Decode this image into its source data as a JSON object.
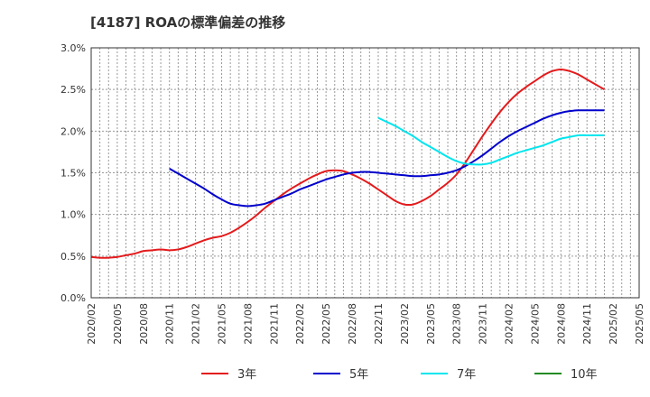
{
  "chart_data": {
    "type": "line",
    "title": "[4187]  ROAの標準偏差の推移",
    "xlabel": "",
    "ylabel": "",
    "ylim": [
      0,
      3.0
    ],
    "y_ticks": [
      "0.0%",
      "0.5%",
      "1.0%",
      "1.5%",
      "2.0%",
      "2.5%",
      "3.0%"
    ],
    "x_ticks": [
      "2020/02",
      "2020/05",
      "2020/08",
      "2020/11",
      "2021/02",
      "2021/05",
      "2021/08",
      "2021/11",
      "2022/02",
      "2022/05",
      "2022/08",
      "2022/11",
      "2023/02",
      "2023/05",
      "2023/08",
      "2023/11",
      "2024/02",
      "2024/05",
      "2024/08",
      "2024/11",
      "2025/02",
      "2025/05"
    ],
    "grid": true,
    "legend_position": "bottom",
    "series": [
      {
        "name": "3年",
        "color": "#e41a1c",
        "points": [
          [
            "2020/02",
            0.49
          ],
          [
            "2020/03",
            0.48
          ],
          [
            "2020/04",
            0.48
          ],
          [
            "2020/05",
            0.49
          ],
          [
            "2020/06",
            0.51
          ],
          [
            "2020/07",
            0.53
          ],
          [
            "2020/08",
            0.56
          ],
          [
            "2020/09",
            0.57
          ],
          [
            "2020/10",
            0.58
          ],
          [
            "2020/11",
            0.57
          ],
          [
            "2020/12",
            0.58
          ],
          [
            "2021/01",
            0.61
          ],
          [
            "2021/02",
            0.65
          ],
          [
            "2021/03",
            0.69
          ],
          [
            "2021/04",
            0.72
          ],
          [
            "2021/05",
            0.74
          ],
          [
            "2021/06",
            0.78
          ],
          [
            "2021/07",
            0.84
          ],
          [
            "2021/08",
            0.91
          ],
          [
            "2021/09",
            0.99
          ],
          [
            "2021/10",
            1.08
          ],
          [
            "2021/11",
            1.16
          ],
          [
            "2021/12",
            1.24
          ],
          [
            "2022/01",
            1.31
          ],
          [
            "2022/02",
            1.37
          ],
          [
            "2022/03",
            1.43
          ],
          [
            "2022/04",
            1.48
          ],
          [
            "2022/05",
            1.52
          ],
          [
            "2022/06",
            1.53
          ],
          [
            "2022/07",
            1.52
          ],
          [
            "2022/08",
            1.48
          ],
          [
            "2022/09",
            1.43
          ],
          [
            "2022/10",
            1.37
          ],
          [
            "2022/11",
            1.3
          ],
          [
            "2022/12",
            1.23
          ],
          [
            "2023/01",
            1.16
          ],
          [
            "2023/02",
            1.12
          ],
          [
            "2023/03",
            1.12
          ],
          [
            "2023/04",
            1.16
          ],
          [
            "2023/05",
            1.22
          ],
          [
            "2023/06",
            1.3
          ],
          [
            "2023/07",
            1.38
          ],
          [
            "2023/08",
            1.48
          ],
          [
            "2023/09",
            1.62
          ],
          [
            "2023/10",
            1.78
          ],
          [
            "2023/11",
            1.94
          ],
          [
            "2023/12",
            2.09
          ],
          [
            "2024/01",
            2.23
          ],
          [
            "2024/02",
            2.35
          ],
          [
            "2024/03",
            2.45
          ],
          [
            "2024/04",
            2.53
          ],
          [
            "2024/05",
            2.6
          ],
          [
            "2024/06",
            2.67
          ],
          [
            "2024/07",
            2.72
          ],
          [
            "2024/08",
            2.74
          ],
          [
            "2024/09",
            2.72
          ],
          [
            "2024/10",
            2.68
          ],
          [
            "2024/11",
            2.62
          ],
          [
            "2024/12",
            2.56
          ],
          [
            "2025/01",
            2.5
          ]
        ]
      },
      {
        "name": "5年",
        "color": "#0000cc",
        "points": [
          [
            "2020/11",
            1.55
          ],
          [
            "2020/12",
            1.49
          ],
          [
            "2021/01",
            1.43
          ],
          [
            "2021/02",
            1.37
          ],
          [
            "2021/03",
            1.31
          ],
          [
            "2021/04",
            1.24
          ],
          [
            "2021/05",
            1.18
          ],
          [
            "2021/06",
            1.13
          ],
          [
            "2021/07",
            1.11
          ],
          [
            "2021/08",
            1.1
          ],
          [
            "2021/09",
            1.11
          ],
          [
            "2021/10",
            1.13
          ],
          [
            "2021/11",
            1.17
          ],
          [
            "2021/12",
            1.21
          ],
          [
            "2022/01",
            1.25
          ],
          [
            "2022/02",
            1.3
          ],
          [
            "2022/03",
            1.34
          ],
          [
            "2022/04",
            1.38
          ],
          [
            "2022/05",
            1.42
          ],
          [
            "2022/06",
            1.45
          ],
          [
            "2022/07",
            1.48
          ],
          [
            "2022/08",
            1.5
          ],
          [
            "2022/09",
            1.51
          ],
          [
            "2022/10",
            1.51
          ],
          [
            "2022/11",
            1.5
          ],
          [
            "2022/12",
            1.49
          ],
          [
            "2023/01",
            1.48
          ],
          [
            "2023/02",
            1.47
          ],
          [
            "2023/03",
            1.46
          ],
          [
            "2023/04",
            1.46
          ],
          [
            "2023/05",
            1.47
          ],
          [
            "2023/06",
            1.48
          ],
          [
            "2023/07",
            1.5
          ],
          [
            "2023/08",
            1.53
          ],
          [
            "2023/09",
            1.58
          ],
          [
            "2023/10",
            1.64
          ],
          [
            "2023/11",
            1.71
          ],
          [
            "2023/12",
            1.79
          ],
          [
            "2024/01",
            1.87
          ],
          [
            "2024/02",
            1.94
          ],
          [
            "2024/03",
            2.0
          ],
          [
            "2024/04",
            2.05
          ],
          [
            "2024/05",
            2.1
          ],
          [
            "2024/06",
            2.15
          ],
          [
            "2024/07",
            2.19
          ],
          [
            "2024/08",
            2.22
          ],
          [
            "2024/09",
            2.24
          ],
          [
            "2024/10",
            2.25
          ],
          [
            "2024/11",
            2.25
          ],
          [
            "2024/12",
            2.25
          ],
          [
            "2025/01",
            2.25
          ]
        ]
      },
      {
        "name": "7年",
        "color": "#00e5ee",
        "points": [
          [
            "2022/11",
            2.16
          ],
          [
            "2022/12",
            2.11
          ],
          [
            "2023/01",
            2.06
          ],
          [
            "2023/02",
            2.0
          ],
          [
            "2023/03",
            1.94
          ],
          [
            "2023/04",
            1.87
          ],
          [
            "2023/05",
            1.81
          ],
          [
            "2023/06",
            1.75
          ],
          [
            "2023/07",
            1.69
          ],
          [
            "2023/08",
            1.64
          ],
          [
            "2023/09",
            1.61
          ],
          [
            "2023/10",
            1.6
          ],
          [
            "2023/11",
            1.6
          ],
          [
            "2023/12",
            1.62
          ],
          [
            "2024/01",
            1.66
          ],
          [
            "2024/02",
            1.7
          ],
          [
            "2024/03",
            1.74
          ],
          [
            "2024/04",
            1.77
          ],
          [
            "2024/05",
            1.8
          ],
          [
            "2024/06",
            1.83
          ],
          [
            "2024/07",
            1.87
          ],
          [
            "2024/08",
            1.91
          ],
          [
            "2024/09",
            1.93
          ],
          [
            "2024/10",
            1.95
          ],
          [
            "2024/11",
            1.95
          ],
          [
            "2024/12",
            1.95
          ],
          [
            "2025/01",
            1.95
          ]
        ]
      },
      {
        "name": "10年",
        "color": "#228b22",
        "points": []
      }
    ]
  }
}
